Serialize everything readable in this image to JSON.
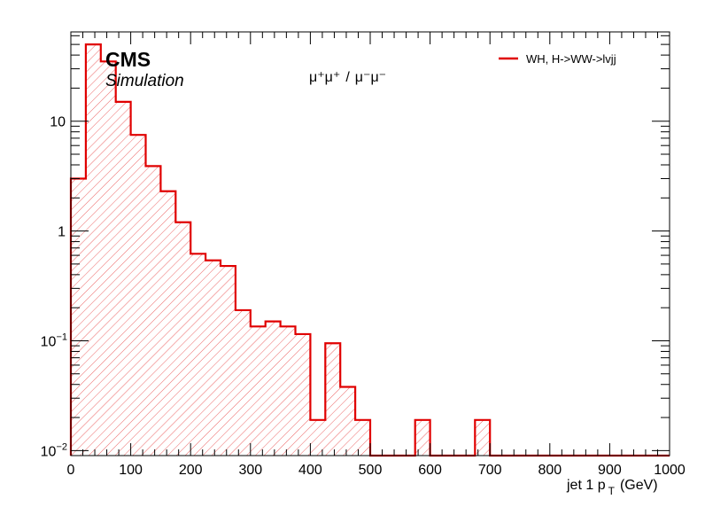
{
  "chart_data": {
    "type": "histogram",
    "scale": {
      "y": "log"
    },
    "xlim": [
      0,
      1000
    ],
    "ylim": [
      0.009,
      65
    ],
    "bin_width": 25,
    "xlabel_main": "jet 1 p",
    "xlabel_sub": "T",
    "xlabel_unit": "(GeV)",
    "x_tick_labels": [
      "0",
      "100",
      "200",
      "300",
      "400",
      "500",
      "600",
      "700",
      "800",
      "900",
      "1000"
    ],
    "x_ticks": [
      0,
      100,
      200,
      300,
      400,
      500,
      600,
      700,
      800,
      900,
      1000
    ],
    "y_tick_labels": [
      {
        "value": 0.01,
        "base": "10",
        "exp": "−2"
      },
      {
        "value": 0.1,
        "base": "10",
        "exp": "−1"
      },
      {
        "value": 1,
        "base": "1",
        "exp": ""
      },
      {
        "value": 10,
        "base": "10",
        "exp": ""
      }
    ],
    "grid": false,
    "legend_placement": "top-right",
    "series": [
      {
        "name": "WH, H->WW->lvjj",
        "color": "#e00000",
        "fill": "hatched",
        "bin_edges": [
          0,
          25,
          50,
          75,
          100,
          125,
          150,
          175,
          200,
          225,
          250,
          275,
          300,
          325,
          350,
          375,
          400,
          425,
          450,
          475,
          500,
          525,
          550,
          575,
          600,
          625,
          650,
          675,
          700,
          725,
          750,
          775,
          800,
          825,
          850,
          875,
          900,
          925,
          950,
          975,
          1000
        ],
        "values": [
          3.0,
          50,
          35,
          15,
          7.5,
          3.9,
          2.3,
          1.2,
          0.62,
          0.54,
          0.48,
          0.19,
          0.135,
          0.15,
          0.135,
          0.115,
          0.019,
          0.095,
          0.038,
          0.019,
          0,
          0,
          0,
          0.019,
          0,
          0,
          0,
          0.019,
          0,
          0,
          0,
          0,
          0,
          0,
          0,
          0,
          0,
          0,
          0,
          0
        ]
      }
    ]
  },
  "labels": {
    "experiment": "CMS",
    "status": "Simulation",
    "channel_a": "μ⁺μ⁺",
    "channel_sep": "/",
    "channel_b": "μ⁻μ⁻"
  }
}
